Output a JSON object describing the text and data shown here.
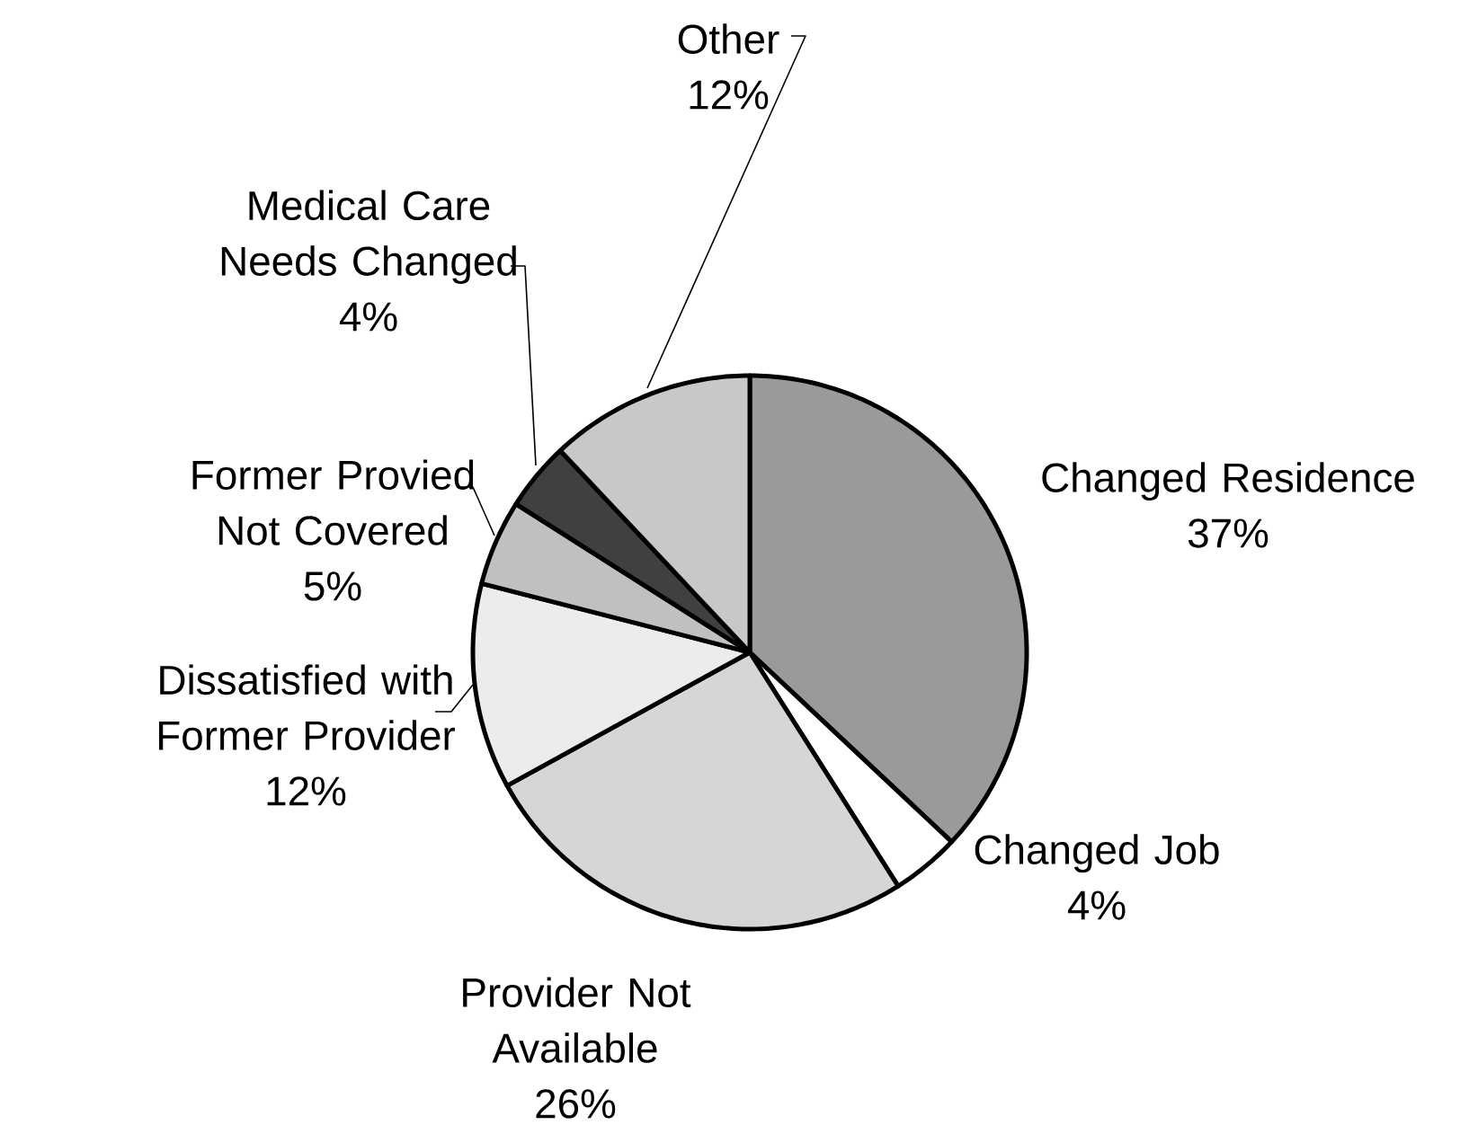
{
  "chart_data": {
    "type": "pie",
    "categories": [
      "Changed Residence",
      "Changed Job",
      "Provider Not Available",
      "Dissatisfied with Former Provider",
      "Former Provied Not Covered",
      "Medical Care Needs Changed",
      "Other"
    ],
    "values": [
      37,
      4,
      26,
      12,
      5,
      4,
      12
    ],
    "value_labels": [
      "37%",
      "4%",
      "26%",
      "12%",
      "5%",
      "4%",
      "12%"
    ],
    "colors": [
      "#9a9a9a",
      "#ffffff",
      "#d6d6d6",
      "#ececec",
      "#c0c0c0",
      "#404040",
      "#c8c8c8"
    ]
  }
}
